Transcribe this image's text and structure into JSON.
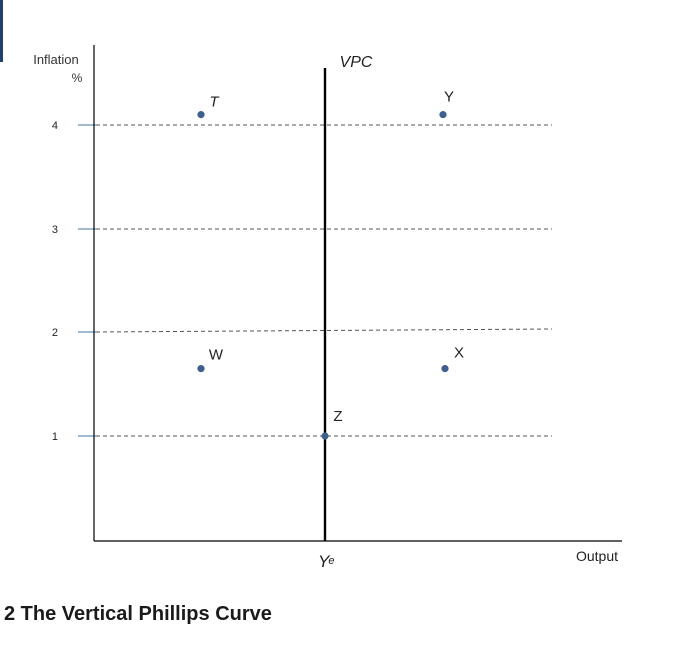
{
  "caption": "2 The Vertical Phillips Curve",
  "colors": {
    "axis": "#000000",
    "dashed": "#555555",
    "tick_mark": "#6a8fb8",
    "point": "#3f5f8f",
    "corner_mark": "#1f3f6e"
  },
  "chart_data": {
    "type": "scatter",
    "title": "",
    "ylabel_line1": "Inflation",
    "ylabel_line2": "%",
    "xlabel": "Output",
    "y_ticks": [
      "1",
      "2",
      "3",
      "4"
    ],
    "grid": "dashed horizontal lines at y = 1, 2, 3, 4",
    "vertical_line": {
      "label": "VPC",
      "x_label": "Y",
      "x_label_sup": "e"
    },
    "points": [
      {
        "label": "T",
        "position": "left of VPC",
        "y": 4.1
      },
      {
        "label": "Y",
        "position": "right of VPC",
        "y": 4.1
      },
      {
        "label": "W",
        "position": "left of VPC",
        "y": 1.65
      },
      {
        "label": "X",
        "position": "right of VPC",
        "y": 1.65
      },
      {
        "label": "Z",
        "position": "on VPC",
        "y": 1.0
      }
    ]
  }
}
